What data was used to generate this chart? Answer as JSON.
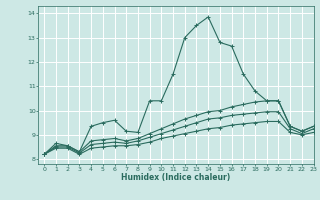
{
  "title": "",
  "xlabel": "Humidex (Indice chaleur)",
  "bg_color": "#cde8e5",
  "grid_color": "#ffffff",
  "line_color": "#2a6b5e",
  "xlim": [
    -0.5,
    23
  ],
  "ylim": [
    7.8,
    14.3
  ],
  "yticks": [
    8,
    9,
    10,
    11,
    12,
    13,
    14
  ],
  "xticks": [
    0,
    1,
    2,
    3,
    4,
    5,
    6,
    7,
    8,
    9,
    10,
    11,
    12,
    13,
    14,
    15,
    16,
    17,
    18,
    19,
    20,
    21,
    22,
    23
  ],
  "series": [
    {
      "x": [
        0,
        1,
        2,
        3,
        4,
        5,
        6,
        7,
        8,
        9,
        10,
        11,
        12,
        13,
        14,
        15,
        16,
        17,
        18,
        19,
        20,
        21,
        22,
        23
      ],
      "y": [
        8.2,
        8.65,
        8.55,
        8.3,
        9.35,
        9.5,
        9.6,
        9.15,
        9.1,
        10.4,
        10.4,
        11.5,
        13.0,
        13.5,
        13.85,
        12.8,
        12.65,
        11.5,
        10.8,
        10.4,
        10.4,
        9.35,
        9.15,
        9.35
      ]
    },
    {
      "x": [
        0,
        1,
        2,
        3,
        4,
        5,
        6,
        7,
        8,
        9,
        10,
        11,
        12,
        13,
        14,
        15,
        16,
        17,
        18,
        19,
        20,
        21,
        22,
        23
      ],
      "y": [
        8.2,
        8.55,
        8.55,
        8.3,
        8.75,
        8.8,
        8.85,
        8.75,
        8.85,
        9.05,
        9.25,
        9.45,
        9.65,
        9.8,
        9.95,
        10.0,
        10.15,
        10.25,
        10.35,
        10.4,
        10.4,
        9.35,
        9.15,
        9.35
      ]
    },
    {
      "x": [
        0,
        1,
        2,
        3,
        4,
        5,
        6,
        7,
        8,
        9,
        10,
        11,
        12,
        13,
        14,
        15,
        16,
        17,
        18,
        19,
        20,
        21,
        22,
        23
      ],
      "y": [
        8.2,
        8.5,
        8.5,
        8.25,
        8.6,
        8.65,
        8.7,
        8.65,
        8.75,
        8.9,
        9.05,
        9.2,
        9.35,
        9.5,
        9.65,
        9.7,
        9.8,
        9.85,
        9.9,
        9.95,
        9.95,
        9.25,
        9.05,
        9.25
      ]
    },
    {
      "x": [
        0,
        1,
        2,
        3,
        4,
        5,
        6,
        7,
        8,
        9,
        10,
        11,
        12,
        13,
        14,
        15,
        16,
        17,
        18,
        19,
        20,
        21,
        22,
        23
      ],
      "y": [
        8.2,
        8.45,
        8.45,
        8.2,
        8.45,
        8.5,
        8.55,
        8.55,
        8.6,
        8.7,
        8.85,
        8.95,
        9.05,
        9.15,
        9.25,
        9.3,
        9.4,
        9.45,
        9.5,
        9.55,
        9.55,
        9.1,
        9.0,
        9.1
      ]
    }
  ]
}
